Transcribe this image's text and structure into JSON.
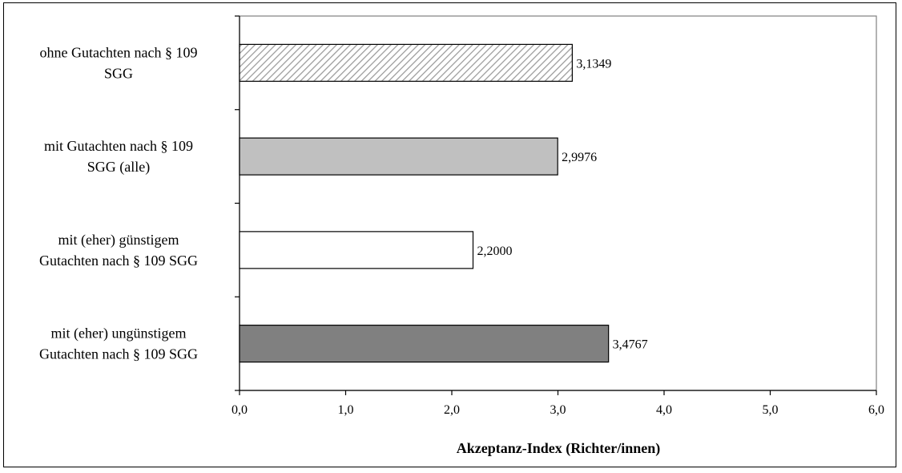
{
  "chart_data": {
    "type": "bar",
    "orientation": "horizontal",
    "categories": [
      [
        "ohne Gutachten nach § 109",
        "SGG"
      ],
      [
        "mit Gutachten nach § 109",
        "SGG (alle)"
      ],
      [
        "mit (eher) günstigem",
        "Gutachten nach § 109 SGG"
      ],
      [
        "mit (eher) ungünstigem",
        "Gutachten nach § 109 SGG"
      ]
    ],
    "values": [
      3.1349,
      2.9976,
      2.2,
      3.4767
    ],
    "value_labels": [
      "3,1349",
      "2,9976",
      "2,2000",
      "3,4767"
    ],
    "bar_styles": [
      {
        "fill": "#ffffff",
        "pattern": "diagonal-hatch",
        "pattern_color": "#9a9a9a"
      },
      {
        "fill": "#c0c0c0",
        "pattern": "none"
      },
      {
        "fill": "#ffffff",
        "pattern": "none"
      },
      {
        "fill": "#808080",
        "pattern": "none"
      }
    ],
    "xlabel": "Akzeptanz-Index (Richter/innen)",
    "xlim": [
      0,
      6
    ],
    "xticks": [
      0,
      1,
      2,
      3,
      4,
      5,
      6
    ],
    "xtick_labels": [
      "0,0",
      "1,0",
      "2,0",
      "3,0",
      "4,0",
      "5,0",
      "6,0"
    ],
    "grid": false,
    "plot_border_color": "#808080"
  }
}
